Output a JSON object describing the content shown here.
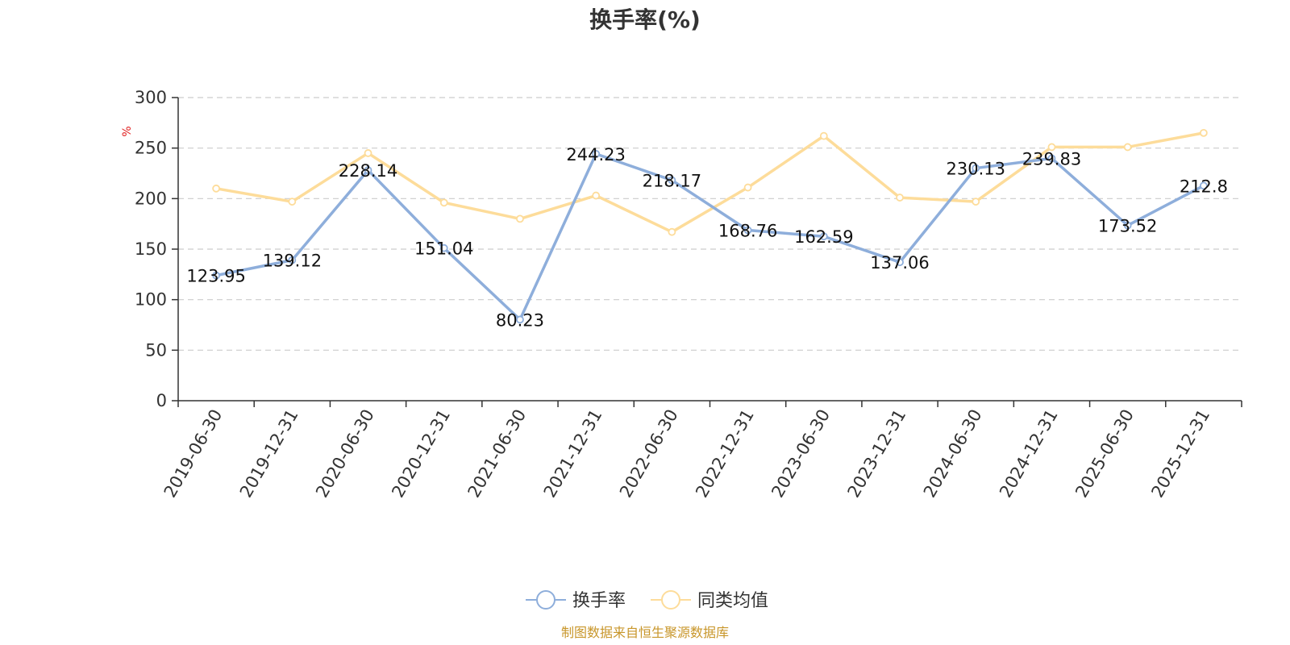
{
  "chart_data": {
    "type": "line",
    "title": "换手率(%)",
    "ylabel": "%",
    "xlabel": "",
    "ylim": [
      0,
      300
    ],
    "yticks": [
      0,
      50,
      100,
      150,
      200,
      250,
      300
    ],
    "grid": true,
    "legend_position": "bottom-center",
    "categories": [
      "2019-06-30",
      "2019-12-31",
      "2020-06-30",
      "2020-12-31",
      "2021-06-30",
      "2021-12-31",
      "2022-06-30",
      "2022-12-31",
      "2023-06-30",
      "2023-12-31",
      "2024-06-30",
      "2024-12-31",
      "2025-06-30",
      "2025-12-31"
    ],
    "series": [
      {
        "name": "换手率",
        "color": "#8eaedb",
        "values": [
          123.95,
          139.12,
          228.14,
          151.04,
          80.23,
          244.23,
          218.17,
          168.76,
          162.59,
          137.06,
          230.13,
          239.83,
          173.52,
          212.8
        ],
        "labels": [
          "123.95",
          "139.12",
          "228.14",
          "151.04",
          "80.23",
          "244.23",
          "218.17",
          "168.76",
          "162.59",
          "137.06",
          "230.13",
          "239.83",
          "173.52",
          "212.8"
        ]
      },
      {
        "name": "同类均值",
        "color": "#fddc9a",
        "values": [
          210,
          197,
          245,
          196,
          180,
          203,
          167,
          211,
          262,
          201,
          197,
          251,
          251,
          265
        ]
      }
    ],
    "source": "制图数据来自恒生聚源数据库"
  }
}
